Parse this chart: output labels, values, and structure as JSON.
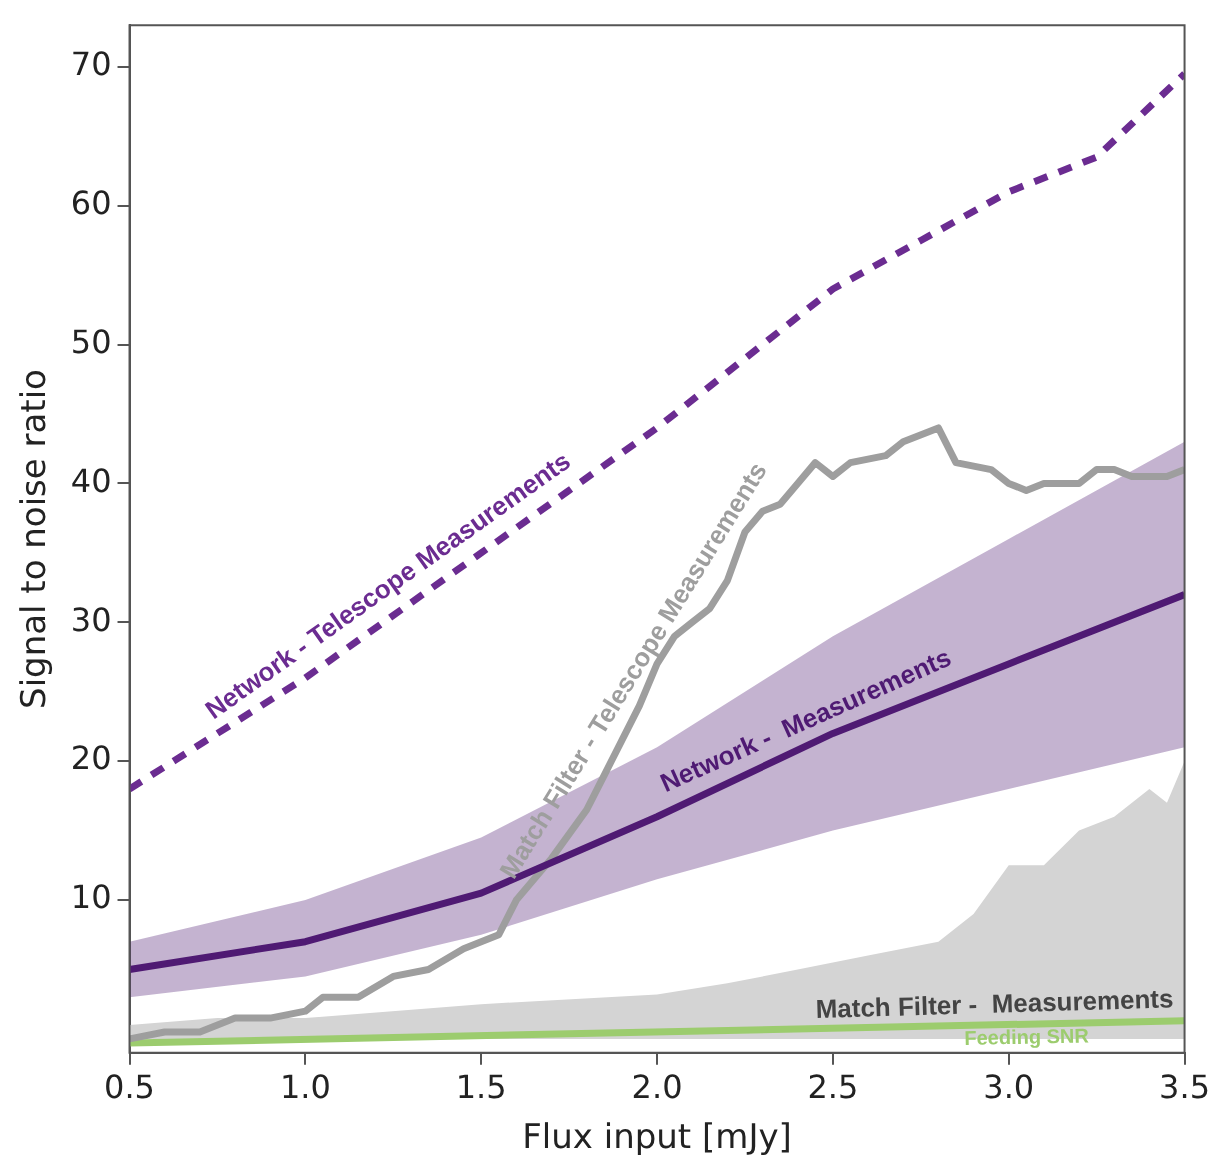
{
  "chart_data": {
    "type": "line",
    "xlabel": "Flux input [mJy]",
    "ylabel": "Signal to noise ratio",
    "xlim": [
      0.5,
      3.5
    ],
    "ylim": [
      -1,
      73
    ],
    "xticks": [
      0.5,
      {
        "value": 1,
        "label": "1.0"
      },
      1.5,
      {
        "value": 2,
        "label": "2.0"
      },
      2.5,
      {
        "value": 3,
        "label": "3.0"
      },
      3.5
    ],
    "yticks": [
      10,
      20,
      30,
      40,
      50,
      60,
      70
    ],
    "grid": false,
    "legend": false,
    "marker": "none",
    "series": [
      {
        "name": "Match Filter -  Measurements",
        "type": "area",
        "color": "#d4d4d4",
        "x": [
          0.5,
          0.75,
          1.0,
          1.5,
          2.0,
          2.2,
          2.4,
          2.6,
          2.8,
          2.9,
          3.0,
          3.1,
          3.2,
          3.3,
          3.4,
          3.45,
          3.5
        ],
        "values": [
          1,
          1.5,
          1.5,
          2.5,
          3.2,
          4,
          5,
          6,
          7,
          9,
          12.5,
          12.5,
          15,
          16,
          18,
          17,
          20
        ]
      },
      {
        "name": "Network - Telescope Measurements",
        "color": "#6b2c91",
        "line_style": "dashed",
        "x": [
          0.5,
          0.75,
          1.0,
          1.25,
          1.5,
          1.75,
          2.0,
          2.25,
          2.5,
          2.75,
          3.0,
          3.25,
          3.5
        ],
        "values": [
          18,
          22,
          26,
          30.5,
          35,
          39.5,
          44,
          49,
          54,
          57.5,
          61,
          63.5,
          69.5
        ]
      },
      {
        "name": "Network -  Measurements",
        "color": "#4f1a73",
        "line_style": "solid",
        "x": [
          0.5,
          1.0,
          1.5,
          2.0,
          2.5,
          3.0,
          3.5
        ],
        "values": [
          5,
          7,
          10.5,
          16,
          22,
          27,
          32
        ],
        "lower": [
          3,
          4.5,
          7.5,
          11.5,
          15,
          18,
          21
        ],
        "upper": [
          7,
          10,
          14.5,
          21,
          29,
          36,
          43
        ]
      },
      {
        "name": "Match Filter - Telescope Measurements",
        "color": "#9e9e9e",
        "line_style": "solid",
        "x": [
          0.5,
          0.6,
          0.7,
          0.8,
          0.9,
          1.0,
          1.05,
          1.15,
          1.25,
          1.35,
          1.45,
          1.55,
          1.6,
          1.7,
          1.8,
          1.85,
          1.9,
          1.95,
          2.0,
          2.05,
          2.1,
          2.15,
          2.2,
          2.25,
          2.3,
          2.35,
          2.4,
          2.45,
          2.5,
          2.55,
          2.65,
          2.7,
          2.8,
          2.85,
          2.95,
          3.0,
          3.05,
          3.1,
          3.2,
          3.25,
          3.3,
          3.35,
          3.45,
          3.5
        ],
        "values": [
          0,
          0.5,
          0.5,
          1.5,
          1.5,
          2,
          3,
          3,
          4.5,
          5,
          6.5,
          7.5,
          10,
          13,
          16.5,
          19,
          21.5,
          24,
          27,
          29,
          30,
          31,
          33,
          36.5,
          38,
          38.5,
          40,
          41.5,
          40.5,
          41.5,
          42,
          43,
          44,
          41.5,
          41,
          40,
          39.5,
          40,
          40,
          41,
          41,
          40.5,
          40.5,
          41
        ]
      },
      {
        "name": "Feeding SNR",
        "color": "#9ccc6e",
        "line_style": "solid",
        "x": [
          0.5,
          3.5
        ],
        "values": [
          -0.3,
          1.3
        ]
      }
    ]
  }
}
